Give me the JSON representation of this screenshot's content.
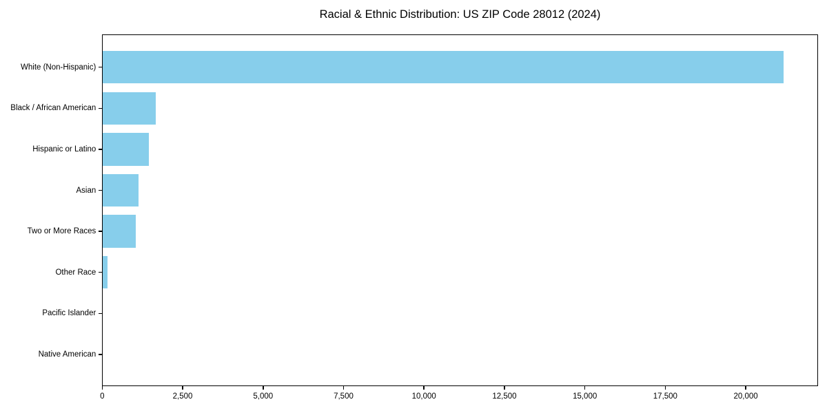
{
  "title": "Racial & Ethnic Distribution: US ZIP Code 28012 (2024)",
  "chart_data": {
    "type": "bar",
    "orientation": "horizontal",
    "title": "Racial & Ethnic Distribution: US ZIP Code 28012 (2024)",
    "xlabel": "",
    "ylabel": "",
    "categories": [
      "White (Non-Hispanic)",
      "Black / African American",
      "Hispanic or Latino",
      "Asian",
      "Two or More Races",
      "Other Race",
      "Pacific Islander",
      "Native American"
    ],
    "values": [
      21180,
      1665,
      1440,
      1130,
      1045,
      160,
      0,
      0
    ],
    "xlim": [
      0,
      22240
    ],
    "x_ticks": [
      0,
      2500,
      5000,
      7500,
      10000,
      12500,
      15000,
      17500,
      20000
    ],
    "x_tick_labels": [
      "0",
      "2,500",
      "5,000",
      "7,500",
      "10,000",
      "12,500",
      "15,000",
      "17,500",
      "20,000"
    ],
    "grid": false,
    "legend": null,
    "colors": {
      "bar": "#87CEEB",
      "spine": "#000000",
      "text": "#000000",
      "background": "#ffffff"
    }
  }
}
